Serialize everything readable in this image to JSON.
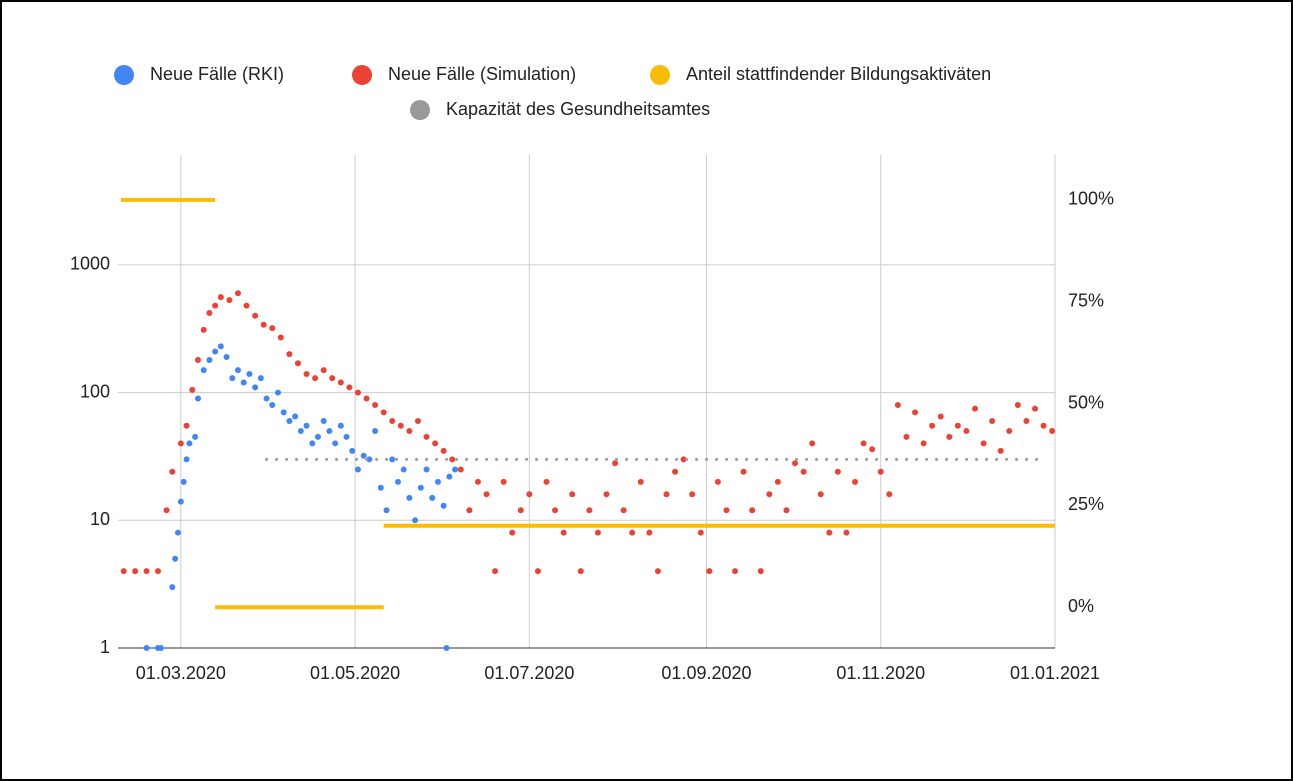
{
  "chart_data": {
    "type": "scatter",
    "log_y": true,
    "grid": true,
    "legend": "top",
    "xlim": [
      "2020-02-08",
      "2021-01-01"
    ],
    "xticks": [
      {
        "value": "2020-03-01",
        "label": "01.03.2020"
      },
      {
        "value": "2020-05-01",
        "label": "01.05.2020"
      },
      {
        "value": "2020-07-01",
        "label": "01.07.2020"
      },
      {
        "value": "2020-09-01",
        "label": "01.09.2020"
      },
      {
        "value": "2020-11-01",
        "label": "01.11.2020"
      },
      {
        "value": "2021-01-01",
        "label": "01.01.2021"
      }
    ],
    "ylim": [
      1,
      7260
    ],
    "yticks": [
      1,
      10,
      100,
      1000
    ],
    "y2lim": [
      -10,
      111
    ],
    "y2ticks": [
      {
        "value": 0,
        "label": "0%"
      },
      {
        "value": 25,
        "label": "25%"
      },
      {
        "value": 50,
        "label": "50%"
      },
      {
        "value": 75,
        "label": "75%"
      },
      {
        "value": 100,
        "label": "100%"
      }
    ],
    "series": [
      {
        "name": "Neue Fälle (RKI)",
        "color": "#4285f4",
        "mark": "point",
        "axis": "y",
        "x": [
          "2020-02-18",
          "2020-02-22",
          "2020-02-23",
          "2020-02-27",
          "2020-02-28",
          "2020-02-29",
          "2020-03-01",
          "2020-03-02",
          "2020-03-03",
          "2020-03-04",
          "2020-03-06",
          "2020-03-07",
          "2020-03-09",
          "2020-03-11",
          "2020-03-13",
          "2020-03-15",
          "2020-03-17",
          "2020-03-19",
          "2020-03-21",
          "2020-03-23",
          "2020-03-25",
          "2020-03-27",
          "2020-03-29",
          "2020-03-31",
          "2020-04-02",
          "2020-04-04",
          "2020-04-06",
          "2020-04-08",
          "2020-04-10",
          "2020-04-12",
          "2020-04-14",
          "2020-04-16",
          "2020-04-18",
          "2020-04-20",
          "2020-04-22",
          "2020-04-24",
          "2020-04-26",
          "2020-04-28",
          "2020-04-30",
          "2020-05-02",
          "2020-05-04",
          "2020-05-06",
          "2020-05-08",
          "2020-05-10",
          "2020-05-12",
          "2020-05-14",
          "2020-05-16",
          "2020-05-18",
          "2020-05-20",
          "2020-05-22",
          "2020-05-24",
          "2020-05-26",
          "2020-05-28",
          "2020-05-30",
          "2020-06-01",
          "2020-06-02",
          "2020-06-03",
          "2020-06-05"
        ],
        "values": [
          1,
          1,
          1,
          3,
          5,
          8,
          14,
          20,
          30,
          40,
          45,
          90,
          150,
          180,
          210,
          230,
          190,
          130,
          150,
          120,
          140,
          110,
          130,
          90,
          80,
          100,
          70,
          60,
          65,
          50,
          55,
          40,
          45,
          60,
          50,
          40,
          55,
          45,
          35,
          25,
          32,
          30,
          50,
          18,
          12,
          30,
          20,
          25,
          15,
          10,
          18,
          25,
          15,
          20,
          13,
          1,
          22,
          25
        ]
      },
      {
        "name": "Neue Fälle (Simulation)",
        "color": "#ea4335",
        "mark": "point",
        "axis": "y",
        "x": [
          "2020-02-10",
          "2020-02-14",
          "2020-02-18",
          "2020-02-22",
          "2020-02-25",
          "2020-02-27",
          "2020-03-01",
          "2020-03-03",
          "2020-03-05",
          "2020-03-07",
          "2020-03-09",
          "2020-03-11",
          "2020-03-13",
          "2020-03-15",
          "2020-03-18",
          "2020-03-21",
          "2020-03-24",
          "2020-03-27",
          "2020-03-30",
          "2020-04-02",
          "2020-04-05",
          "2020-04-08",
          "2020-04-11",
          "2020-04-14",
          "2020-04-17",
          "2020-04-20",
          "2020-04-23",
          "2020-04-26",
          "2020-04-29",
          "2020-05-02",
          "2020-05-05",
          "2020-05-08",
          "2020-05-11",
          "2020-05-14",
          "2020-05-17",
          "2020-05-20",
          "2020-05-23",
          "2020-05-26",
          "2020-05-29",
          "2020-06-01",
          "2020-06-04",
          "2020-06-07",
          "2020-06-10",
          "2020-06-13",
          "2020-06-16",
          "2020-06-19",
          "2020-06-22",
          "2020-06-25",
          "2020-06-28",
          "2020-07-01",
          "2020-07-04",
          "2020-07-07",
          "2020-07-10",
          "2020-07-13",
          "2020-07-16",
          "2020-07-19",
          "2020-07-22",
          "2020-07-25",
          "2020-07-28",
          "2020-07-31",
          "2020-08-03",
          "2020-08-06",
          "2020-08-09",
          "2020-08-12",
          "2020-08-15",
          "2020-08-18",
          "2020-08-21",
          "2020-08-24",
          "2020-08-27",
          "2020-08-30",
          "2020-09-02",
          "2020-09-05",
          "2020-09-08",
          "2020-09-11",
          "2020-09-14",
          "2020-09-17",
          "2020-09-20",
          "2020-09-23",
          "2020-09-26",
          "2020-09-29",
          "2020-10-02",
          "2020-10-05",
          "2020-10-08",
          "2020-10-11",
          "2020-10-14",
          "2020-10-17",
          "2020-10-20",
          "2020-10-23",
          "2020-10-26",
          "2020-10-29",
          "2020-11-01",
          "2020-11-04",
          "2020-11-07",
          "2020-11-10",
          "2020-11-13",
          "2020-11-16",
          "2020-11-19",
          "2020-11-22",
          "2020-11-25",
          "2020-11-28",
          "2020-12-01",
          "2020-12-04",
          "2020-12-07",
          "2020-12-10",
          "2020-12-13",
          "2020-12-16",
          "2020-12-19",
          "2020-12-22",
          "2020-12-25",
          "2020-12-28",
          "2020-12-31"
        ],
        "values": [
          4,
          4,
          4,
          4,
          12,
          24,
          40,
          55,
          105,
          180,
          310,
          420,
          480,
          560,
          530,
          600,
          480,
          400,
          340,
          320,
          270,
          200,
          170,
          140,
          130,
          150,
          130,
          120,
          110,
          100,
          90,
          80,
          70,
          60,
          55,
          50,
          60,
          45,
          40,
          35,
          30,
          25,
          12,
          20,
          16,
          4,
          20,
          8,
          12,
          16,
          4,
          20,
          12,
          8,
          16,
          4,
          12,
          8,
          16,
          28,
          12,
          8,
          20,
          8,
          4,
          16,
          24,
          30,
          16,
          8,
          4,
          20,
          12,
          4,
          24,
          12,
          4,
          16,
          20,
          12,
          28,
          24,
          40,
          16,
          8,
          24,
          8,
          20,
          40,
          36,
          24,
          16,
          80,
          45,
          70,
          40,
          55,
          65,
          45,
          55,
          50,
          75,
          40,
          60,
          35,
          50,
          80,
          60,
          75,
          55,
          50
        ]
      },
      {
        "name": "Anteil stattfindender Bildungsaktiväten",
        "color": "#fbbc04",
        "mark": "line",
        "axis": "y2",
        "x": [
          "2020-02-09",
          "2020-03-13",
          "2020-03-13",
          "2020-03-13",
          "2020-05-11",
          "2020-05-11",
          "2020-05-11",
          "2021-01-01"
        ],
        "values": [
          100,
          100,
          null,
          0,
          0,
          null,
          20,
          20
        ]
      },
      {
        "name": "Kapazität des Gesundheitsamtes",
        "color": "#999999",
        "mark": "dotted",
        "axis": "y",
        "x": [
          "2020-03-31",
          "2020-12-27"
        ],
        "values": [
          30,
          30
        ]
      }
    ]
  }
}
